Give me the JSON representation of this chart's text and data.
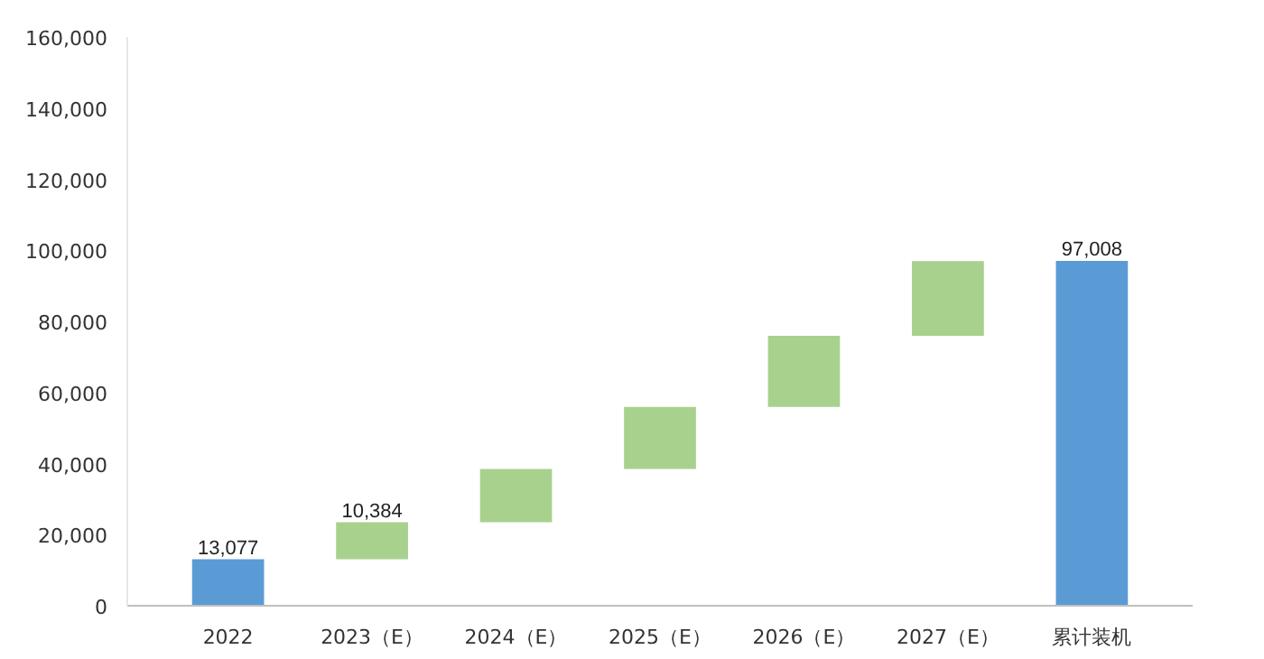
{
  "chart_data": {
    "type": "bar",
    "categories": [
      "2022",
      "2023（E）",
      "2024（E）",
      "2025（E）",
      "2026（E）",
      "2027（E）",
      "累计装机"
    ],
    "values": [
      13077,
      10384,
      15000,
      17500,
      20000,
      21000,
      97008
    ],
    "base": [
      0,
      13077,
      23461,
      38461,
      55961,
      75961,
      0
    ],
    "colors": [
      "#5b9bd5",
      "#a9d18e",
      "#a9d18e",
      "#a9d18e",
      "#a9d18e",
      "#a9d18e",
      "#5b9bd5"
    ],
    "value_labels": [
      "13,077",
      "10,384",
      null,
      null,
      null,
      null,
      "97,008"
    ],
    "ylim": [
      0,
      160000
    ],
    "yticks": [
      {
        "value": 0,
        "label": "0"
      },
      {
        "value": 20000,
        "label": "20,000"
      },
      {
        "value": 40000,
        "label": "40,000"
      },
      {
        "value": 60000,
        "label": "60,000"
      },
      {
        "value": 80000,
        "label": "80,000"
      },
      {
        "value": 100000,
        "label": "100,000"
      },
      {
        "value": 120000,
        "label": "120,000"
      },
      {
        "value": 140000,
        "label": "140,000"
      },
      {
        "value": 160000,
        "label": "160,000"
      }
    ],
    "grid": false
  }
}
